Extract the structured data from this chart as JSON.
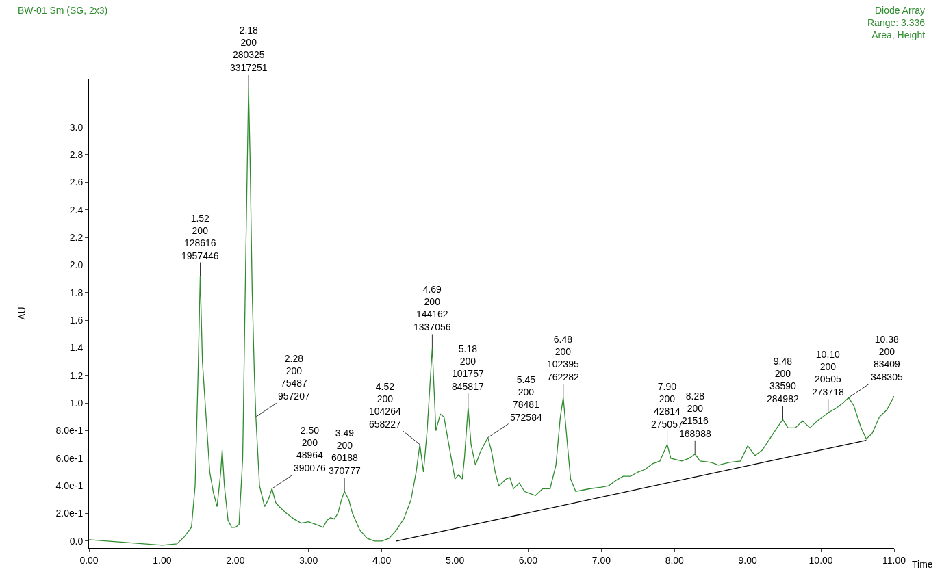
{
  "chart_data": {
    "type": "line",
    "title": "BW-01 Sm (SG, 2x3)",
    "subtitle": "Diode Array\nRange: 3.336\nArea, Height",
    "xlabel": "Time",
    "ylabel": "AU",
    "xlim": [
      0,
      11
    ],
    "ylim": [
      -0.05,
      3.35
    ],
    "xticks": [
      {
        "value": 0,
        "label": "0.00"
      },
      {
        "value": 1,
        "label": "1.00"
      },
      {
        "value": 2,
        "label": "2.00"
      },
      {
        "value": 3,
        "label": "3.00"
      },
      {
        "value": 4,
        "label": "4.00"
      },
      {
        "value": 5,
        "label": "5.00"
      },
      {
        "value": 6,
        "label": "6.00"
      },
      {
        "value": 7,
        "label": "7.00"
      },
      {
        "value": 8,
        "label": "8.00"
      },
      {
        "value": 9,
        "label": "9.00"
      },
      {
        "value": 10,
        "label": "10.00"
      },
      {
        "value": 11,
        "label": "11.00"
      }
    ],
    "yticks": [
      {
        "value": 0,
        "label": "0.0"
      },
      {
        "value": 0.2,
        "label": "2.0e-1"
      },
      {
        "value": 0.4,
        "label": "4.0e-1"
      },
      {
        "value": 0.6,
        "label": "6.0e-1"
      },
      {
        "value": 0.8,
        "label": "8.0e-1"
      },
      {
        "value": 1.0,
        "label": "1.0"
      },
      {
        "value": 1.2,
        "label": "1.2"
      },
      {
        "value": 1.4,
        "label": "1.4"
      },
      {
        "value": 1.6,
        "label": "1.6"
      },
      {
        "value": 1.8,
        "label": "1.8"
      },
      {
        "value": 2.0,
        "label": "2.0"
      },
      {
        "value": 2.2,
        "label": "2.2"
      },
      {
        "value": 2.4,
        "label": "2.4"
      },
      {
        "value": 2.6,
        "label": "2.6"
      },
      {
        "value": 2.8,
        "label": "2.8"
      },
      {
        "value": 3.0,
        "label": "3.0"
      }
    ],
    "marker": "none",
    "line_style": "solid",
    "series": [
      {
        "color": "#2e8b2e",
        "x": [
          0,
          0.5,
          1.0,
          1.2,
          1.3,
          1.4,
          1.45,
          1.49,
          1.52,
          1.55,
          1.6,
          1.65,
          1.7,
          1.75,
          1.8,
          1.82,
          1.85,
          1.9,
          1.95,
          2.0,
          2.05,
          2.1,
          2.14,
          2.18,
          2.2,
          2.23,
          2.26,
          2.28,
          2.33,
          2.4,
          2.45,
          2.5,
          2.55,
          2.6,
          2.7,
          2.8,
          2.9,
          3.0,
          3.1,
          3.2,
          3.25,
          3.3,
          3.35,
          3.4,
          3.45,
          3.49,
          3.55,
          3.6,
          3.7,
          3.8,
          3.9,
          4.0,
          4.1,
          4.2,
          4.3,
          4.4,
          4.47,
          4.52,
          4.57,
          4.62,
          4.69,
          4.74,
          4.8,
          4.85,
          4.9,
          4.95,
          5.0,
          5.05,
          5.1,
          5.13,
          5.18,
          5.22,
          5.28,
          5.35,
          5.45,
          5.5,
          5.55,
          5.6,
          5.7,
          5.75,
          5.8,
          5.88,
          5.95,
          6.0,
          6.1,
          6.2,
          6.3,
          6.38,
          6.44,
          6.48,
          6.52,
          6.58,
          6.65,
          6.75,
          6.85,
          7.0,
          7.1,
          7.2,
          7.3,
          7.4,
          7.5,
          7.6,
          7.7,
          7.8,
          7.9,
          7.95,
          8.1,
          8.2,
          8.28,
          8.35,
          8.5,
          8.6,
          8.75,
          8.9,
          9.0,
          9.1,
          9.2,
          9.3,
          9.4,
          9.48,
          9.55,
          9.65,
          9.75,
          9.85,
          9.95,
          10.1,
          10.2,
          10.3,
          10.38,
          10.45,
          10.55,
          10.62,
          10.7,
          10.8,
          10.9,
          11.0
        ],
        "values": [
          0.01,
          -0.01,
          -0.03,
          -0.02,
          0.03,
          0.1,
          0.4,
          1.2,
          1.92,
          1.3,
          0.9,
          0.5,
          0.35,
          0.25,
          0.5,
          0.66,
          0.4,
          0.15,
          0.1,
          0.1,
          0.12,
          0.6,
          2.0,
          3.28,
          2.8,
          1.8,
          1.2,
          0.9,
          0.4,
          0.25,
          0.3,
          0.38,
          0.28,
          0.25,
          0.2,
          0.16,
          0.13,
          0.14,
          0.12,
          0.1,
          0.15,
          0.17,
          0.16,
          0.2,
          0.3,
          0.36,
          0.3,
          0.2,
          0.08,
          0.02,
          0.0,
          0.0,
          0.02,
          0.08,
          0.16,
          0.3,
          0.5,
          0.7,
          0.5,
          0.8,
          1.4,
          0.8,
          0.92,
          0.9,
          0.75,
          0.6,
          0.45,
          0.48,
          0.45,
          0.6,
          0.97,
          0.7,
          0.55,
          0.65,
          0.75,
          0.65,
          0.5,
          0.4,
          0.45,
          0.46,
          0.38,
          0.42,
          0.36,
          0.35,
          0.33,
          0.38,
          0.38,
          0.55,
          0.9,
          1.04,
          0.8,
          0.45,
          0.36,
          0.37,
          0.38,
          0.39,
          0.4,
          0.44,
          0.47,
          0.47,
          0.5,
          0.52,
          0.56,
          0.58,
          0.7,
          0.6,
          0.58,
          0.6,
          0.63,
          0.58,
          0.57,
          0.55,
          0.57,
          0.58,
          0.69,
          0.62,
          0.66,
          0.74,
          0.82,
          0.88,
          0.82,
          0.82,
          0.87,
          0.82,
          0.87,
          0.93,
          0.96,
          1.0,
          1.04,
          0.98,
          0.82,
          0.74,
          0.78,
          0.9,
          0.95,
          1.05
        ]
      },
      {
        "color": "#000000",
        "x": [
          4.2,
          10.62
        ],
        "values": [
          0.0,
          0.73
        ]
      }
    ],
    "annotations": [
      {
        "text": "1.52\n200\n128616\n1957446",
        "x": 1.52,
        "y": 1.92
      },
      {
        "text": "2.18\n200\n280325\n3317251",
        "x": 2.18,
        "y": 3.28
      },
      {
        "text": "2.28\n200\n75487\n957207",
        "x": 2.28,
        "y": 0.9
      },
      {
        "text": "2.50\n200\n48964\n390076",
        "x": 2.5,
        "y": 0.38
      },
      {
        "text": "3.49\n200\n60188\n370777",
        "x": 3.49,
        "y": 0.36
      },
      {
        "text": "4.52\n200\n104264\n658227",
        "x": 4.52,
        "y": 0.7
      },
      {
        "text": "4.69\n200\n144162\n1337056",
        "x": 4.69,
        "y": 1.4
      },
      {
        "text": "5.18\n200\n101757\n845817",
        "x": 5.18,
        "y": 0.97
      },
      {
        "text": "5.45\n200\n78481\n572584",
        "x": 5.45,
        "y": 0.75
      },
      {
        "text": "6.48\n200\n102395\n762282",
        "x": 6.48,
        "y": 1.04
      },
      {
        "text": "7.90\n200\n42814\n275057",
        "x": 7.9,
        "y": 0.7
      },
      {
        "text": "8.28\n200\n21516\n168988",
        "x": 8.28,
        "y": 0.63
      },
      {
        "text": "9.48\n200\n33590\n284982",
        "x": 9.48,
        "y": 0.88
      },
      {
        "text": "10.10\n200\n20505\n273718",
        "x": 10.1,
        "y": 0.93
      },
      {
        "text": "10.38\n200\n83409\n348305",
        "x": 10.38,
        "y": 1.04
      }
    ]
  }
}
